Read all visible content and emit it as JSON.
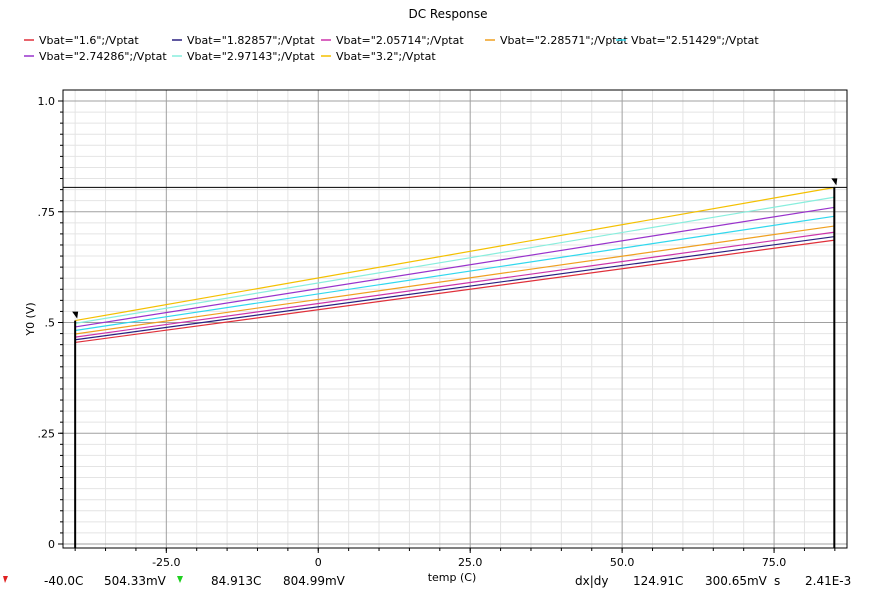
{
  "chart_data": {
    "type": "line",
    "title": "DC Response",
    "xlabel": "temp (C)",
    "ylabel": "Y0 (V)",
    "xlim": [
      -42,
      87
    ],
    "ylim": [
      0,
      1.0
    ],
    "grid": true,
    "legend_placement": "top",
    "x_ticks": [
      {
        "value": -25,
        "label": "-25.0"
      },
      {
        "value": 0,
        "label": "0"
      },
      {
        "value": 25,
        "label": "25.0"
      },
      {
        "value": 50,
        "label": "50.0"
      },
      {
        "value": 75,
        "label": "75.0"
      }
    ],
    "y_ticks": [
      {
        "value": 0,
        "label": "0"
      },
      {
        "value": 0.25,
        "label": ".25"
      },
      {
        "value": 0.5,
        "label": ".5"
      },
      {
        "value": 0.75,
        "label": ".75"
      },
      {
        "value": 1.0,
        "label": "1.0"
      }
    ],
    "x": [
      -40,
      85
    ],
    "series": [
      {
        "name": "Vbat=\"1.6\";/Vptat",
        "color": "#e0303a",
        "values": [
          0.455,
          0.686
        ]
      },
      {
        "name": "Vbat=\"1.82857\";/Vptat",
        "color": "#2a2080",
        "values": [
          0.461,
          0.694
        ]
      },
      {
        "name": "Vbat=\"2.05714\";/Vptat",
        "color": "#cc33aa",
        "values": [
          0.467,
          0.704
        ]
      },
      {
        "name": "Vbat=\"2.28571\";/Vptat",
        "color": "#f0a020",
        "values": [
          0.474,
          0.718
        ]
      },
      {
        "name": "Vbat=\"2.51429\";/Vptat",
        "color": "#30d8ee",
        "values": [
          0.482,
          0.74
        ]
      },
      {
        "name": "Vbat=\"2.74286\";/Vptat",
        "color": "#9933cc",
        "values": [
          0.49,
          0.76
        ]
      },
      {
        "name": "Vbat=\"2.97143\";/Vptat",
        "color": "#88eedd",
        "values": [
          0.498,
          0.783
        ]
      },
      {
        "name": "Vbat=\"3.2\";/Vptat",
        "color": "#f4c000",
        "values": [
          0.5043,
          0.805
        ]
      }
    ],
    "markers": [
      {
        "x": -40.0,
        "y": 0.50433
      },
      {
        "x": 84.913,
        "y": 0.80499
      }
    ],
    "hline": 0.805
  },
  "readout": {
    "m1_x": "-40.0C",
    "m1_y": "504.33mV",
    "m2_x": "84.913C",
    "m2_y": "804.99mV",
    "delta_label": "dx|dy",
    "dx": "124.91C",
    "dy": "300.65mV",
    "slope_unit": "s",
    "slope": "2.41E-3"
  }
}
